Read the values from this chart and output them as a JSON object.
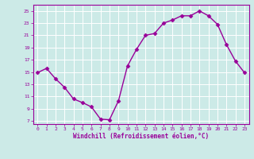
{
  "x": [
    0,
    1,
    2,
    3,
    4,
    5,
    6,
    7,
    8,
    9,
    10,
    11,
    12,
    13,
    14,
    15,
    16,
    17,
    18,
    19,
    20,
    21,
    22,
    23
  ],
  "y": [
    14.9,
    15.6,
    13.9,
    12.5,
    10.6,
    10.0,
    9.3,
    7.3,
    7.2,
    10.3,
    16.0,
    18.7,
    21.0,
    21.3,
    23.0,
    23.5,
    24.2,
    24.2,
    25.0,
    24.2,
    22.8,
    19.5,
    16.8,
    14.9
  ],
  "line_color": "#990099",
  "marker": "D",
  "marker_size": 2.5,
  "bg_color": "#cceae7",
  "grid_color": "#ffffff",
  "xlabel": "Windchill (Refroidissement éolien,°C)",
  "xlabel_color": "#990099",
  "tick_color": "#990099",
  "spine_color": "#990099",
  "ylim": [
    6.5,
    26
  ],
  "xlim": [
    -0.5,
    23.5
  ],
  "yticks": [
    7,
    9,
    11,
    13,
    15,
    17,
    19,
    21,
    23,
    25
  ],
  "xticks": [
    0,
    1,
    2,
    3,
    4,
    5,
    6,
    7,
    8,
    9,
    10,
    11,
    12,
    13,
    14,
    15,
    16,
    17,
    18,
    19,
    20,
    21,
    22,
    23
  ],
  "tick_fontsize": 4.5,
  "xlabel_fontsize": 5.5,
  "linewidth": 1.0
}
